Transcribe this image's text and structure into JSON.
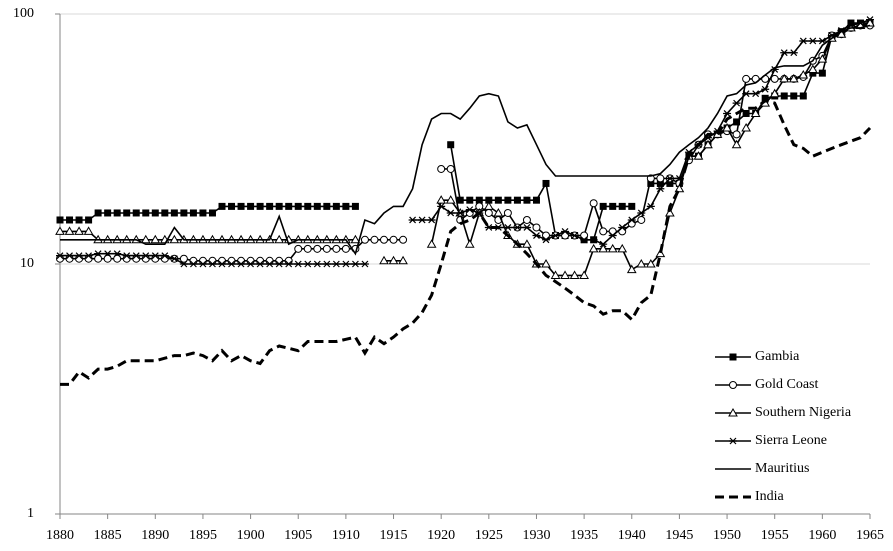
{
  "chart_data": {
    "type": "line",
    "log_y": true,
    "grid": true,
    "legend": "lower right",
    "x": [
      1880,
      1881,
      1882,
      1883,
      1884,
      1885,
      1886,
      1887,
      1888,
      1889,
      1890,
      1891,
      1892,
      1893,
      1894,
      1895,
      1896,
      1897,
      1898,
      1899,
      1900,
      1901,
      1902,
      1903,
      1904,
      1905,
      1906,
      1907,
      1908,
      1909,
      1910,
      1911,
      1912,
      1913,
      1914,
      1915,
      1916,
      1917,
      1918,
      1919,
      1920,
      1921,
      1922,
      1923,
      1924,
      1925,
      1926,
      1927,
      1928,
      1929,
      1930,
      1931,
      1932,
      1933,
      1934,
      1935,
      1936,
      1937,
      1938,
      1939,
      1940,
      1941,
      1942,
      1943,
      1944,
      1945,
      1946,
      1947,
      1948,
      1949,
      1950,
      1951,
      1952,
      1953,
      1954,
      1955,
      1956,
      1957,
      1958,
      1959,
      1960,
      1961,
      1962,
      1963,
      1964,
      1965
    ],
    "xlim": [
      1880,
      1965
    ],
    "xticks": [
      1880,
      1885,
      1890,
      1895,
      1900,
      1905,
      1910,
      1915,
      1920,
      1925,
      1930,
      1935,
      1940,
      1945,
      1950,
      1955,
      1960,
      1965
    ],
    "ylim": [
      1,
      100
    ],
    "yticks": [
      1,
      10,
      100
    ],
    "series": [
      {
        "name": "Gambia",
        "color": "#000000",
        "marker": "square",
        "dash": false,
        "values": [
          15,
          15,
          15,
          15,
          16,
          16,
          16,
          16,
          16,
          16,
          16,
          16,
          16,
          16,
          16,
          16,
          16,
          17,
          17,
          17,
          17,
          17,
          17,
          17,
          17,
          17,
          17,
          17,
          17,
          17,
          17,
          17,
          null,
          null,
          null,
          null,
          null,
          null,
          null,
          null,
          null,
          30,
          18,
          18,
          18,
          18,
          18,
          18,
          18,
          18,
          18,
          21,
          13,
          13,
          13,
          12.5,
          12.5,
          17,
          17,
          17,
          17,
          null,
          21,
          21,
          21,
          21,
          27,
          27,
          30,
          33,
          35,
          37,
          40,
          40,
          46,
          47,
          47,
          47,
          47,
          58,
          58,
          82,
          85,
          92,
          92,
          92
        ]
      },
      {
        "name": "Gold Coast",
        "color": "#000000",
        "marker": "circle",
        "dash": false,
        "values": [
          10.5,
          10.5,
          10.5,
          10.5,
          10.5,
          10.5,
          10.5,
          10.5,
          10.5,
          10.5,
          10.5,
          10.5,
          10.5,
          10.5,
          10.3,
          10.3,
          10.3,
          10.3,
          10.3,
          10.3,
          10.3,
          10.3,
          10.3,
          10.3,
          10.3,
          11.5,
          11.5,
          11.5,
          11.5,
          11.5,
          11.5,
          11.5,
          12.5,
          12.5,
          12.5,
          12.5,
          12.5,
          null,
          null,
          null,
          24,
          24,
          15,
          16,
          17,
          16,
          15,
          16,
          14,
          15,
          14,
          13,
          13,
          13,
          13,
          13,
          17.5,
          13.5,
          13.5,
          13.5,
          14.5,
          15,
          22,
          22,
          22,
          21,
          26,
          30,
          33,
          33,
          34,
          33,
          55,
          55,
          55,
          55,
          55,
          55,
          56,
          65,
          68,
          82,
          83,
          88,
          90,
          90
        ]
      },
      {
        "name": "Southern Nigeria",
        "color": "#000000",
        "marker": "triangle",
        "dash": false,
        "values": [
          13.5,
          13.5,
          13.5,
          13.5,
          12.5,
          12.5,
          12.5,
          12.5,
          12.5,
          12.5,
          12.5,
          12.5,
          12.5,
          12.5,
          12.5,
          12.5,
          12.5,
          12.5,
          12.5,
          12.5,
          12.5,
          12.5,
          12.5,
          12.5,
          12.5,
          12.5,
          12.5,
          12.5,
          12.5,
          12.5,
          12.5,
          12.5,
          null,
          null,
          10.3,
          10.3,
          10.3,
          null,
          null,
          12,
          18,
          18,
          16,
          12,
          16,
          17,
          16,
          13,
          12,
          12,
          10,
          10,
          9,
          9,
          9,
          9,
          11.5,
          11.5,
          11.5,
          11.5,
          9.5,
          10,
          10,
          11,
          16,
          20,
          27,
          27,
          30,
          33,
          35,
          30,
          35,
          40,
          44,
          48,
          55,
          55,
          57,
          60,
          66,
          80,
          83,
          88,
          90,
          92
        ]
      },
      {
        "name": "Sierra Leone",
        "color": "#000000",
        "marker": "asterisk",
        "dash": false,
        "values": [
          10.8,
          10.8,
          10.8,
          10.8,
          11,
          11,
          11,
          10.8,
          10.8,
          10.8,
          10.8,
          10.8,
          10.5,
          10,
          10,
          10,
          10,
          10,
          10,
          10,
          10,
          10,
          10,
          10,
          10,
          10,
          10,
          10,
          10,
          10,
          10,
          10,
          10,
          null,
          null,
          null,
          null,
          15,
          15,
          15,
          17,
          16,
          16,
          16.5,
          16,
          14,
          14,
          14,
          14,
          14,
          13,
          12.5,
          13,
          13.5,
          13,
          12.5,
          12.5,
          12,
          13,
          14,
          15,
          16,
          17,
          20,
          22,
          22,
          28,
          30,
          32,
          34,
          40,
          44,
          48,
          48,
          50,
          60,
          70,
          70,
          78,
          78,
          78,
          82,
          86,
          90,
          92,
          95
        ]
      },
      {
        "name": "Mauritius",
        "color": "#000000",
        "marker": "none",
        "dash": false,
        "values": [
          12.5,
          12.5,
          12.5,
          12.5,
          12.5,
          12.5,
          12.5,
          12.5,
          12.5,
          12,
          12,
          12,
          14,
          12.5,
          12.5,
          12.5,
          12.5,
          12.5,
          12.5,
          12.5,
          12.5,
          12.5,
          12.5,
          15.5,
          12,
          12.5,
          12.5,
          12.5,
          12.5,
          12.5,
          12.5,
          11,
          15,
          14.5,
          16,
          17,
          17,
          20,
          30,
          38,
          40,
          40,
          38,
          42,
          47,
          48,
          47,
          37,
          35,
          36,
          30,
          25,
          22.5,
          22.5,
          22.5,
          22.5,
          22.5,
          22.5,
          22.5,
          22.5,
          22.5,
          22.5,
          22.5,
          23,
          25,
          28,
          30,
          32,
          35,
          40,
          47,
          48,
          52,
          53,
          57,
          61,
          62,
          62,
          62,
          65,
          75,
          80,
          85,
          88,
          88,
          90
        ]
      },
      {
        "name": "India",
        "color": "#000000",
        "marker": "none",
        "dash": true,
        "values": [
          3.3,
          3.3,
          3.7,
          3.5,
          3.8,
          3.8,
          3.9,
          4.1,
          4.1,
          4.1,
          4.1,
          4.2,
          4.3,
          4.3,
          4.4,
          4.3,
          4.1,
          4.5,
          4.1,
          4.3,
          4.1,
          4,
          4.5,
          4.7,
          4.6,
          4.5,
          4.9,
          4.9,
          4.9,
          4.9,
          5,
          5.1,
          4.4,
          5.1,
          4.8,
          5.1,
          5.5,
          5.8,
          6.4,
          7.5,
          10,
          13.5,
          14.5,
          15,
          16,
          14,
          14,
          13,
          12,
          11,
          10,
          9,
          8.5,
          8,
          7.5,
          7,
          6.8,
          6.3,
          6.5,
          6.5,
          6,
          7,
          7.5,
          11,
          17,
          20,
          27,
          30,
          33,
          33,
          38,
          40,
          42,
          42,
          45,
          44,
          36,
          30,
          29,
          27,
          28,
          29,
          30,
          31,
          32,
          35
        ]
      }
    ]
  }
}
